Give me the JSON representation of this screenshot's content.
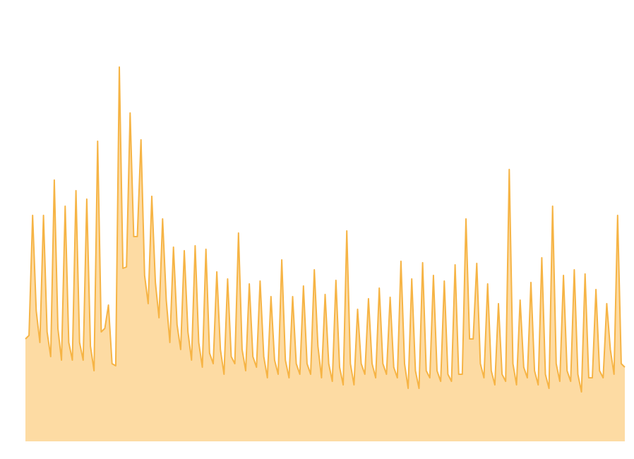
{
  "chart_data": {
    "type": "area",
    "color": "#f6b445",
    "fill": "#fddba3",
    "values": [
      145,
      150,
      320,
      185,
      140,
      320,
      155,
      120,
      370,
      160,
      115,
      333,
      140,
      115,
      355,
      140,
      115,
      343,
      135,
      100,
      425,
      155,
      160,
      193,
      110,
      107,
      530,
      245,
      247,
      465,
      290,
      290,
      427,
      235,
      195,
      347,
      225,
      175,
      315,
      200,
      140,
      275,
      165,
      130,
      270,
      155,
      115,
      277,
      140,
      105,
      272,
      125,
      110,
      240,
      130,
      95,
      230,
      120,
      110,
      295,
      130,
      100,
      223,
      120,
      105,
      227,
      120,
      90,
      205,
      115,
      95,
      257,
      115,
      90,
      205,
      110,
      95,
      220,
      110,
      95,
      243,
      135,
      90,
      208,
      110,
      85,
      228,
      105,
      80,
      298,
      110,
      80,
      187,
      110,
      95,
      202,
      110,
      90,
      217,
      110,
      95,
      204,
      105,
      90,
      255,
      110,
      75,
      230,
      100,
      75,
      253,
      100,
      90,
      235,
      100,
      85,
      227,
      95,
      85,
      250,
      95,
      95,
      315,
      145,
      145,
      252,
      110,
      90,
      223,
      100,
      80,
      195,
      95,
      85,
      385,
      110,
      80,
      200,
      105,
      90,
      225,
      100,
      80,
      260,
      95,
      75,
      333,
      110,
      85,
      235,
      100,
      85,
      243,
      95,
      70,
      237,
      90,
      90,
      215,
      100,
      90,
      195,
      130,
      95,
      320,
      110,
      105
    ]
  }
}
